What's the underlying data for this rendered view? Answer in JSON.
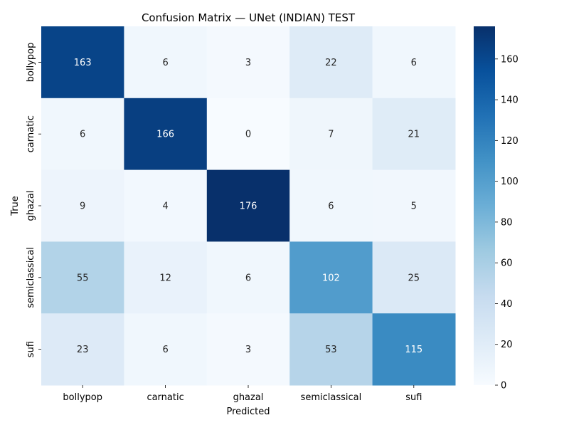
{
  "chart_data": {
    "type": "heatmap",
    "title": "Confusion Matrix — UNet (INDIAN) TEST",
    "xlabel": "Predicted",
    "ylabel": "True",
    "x_categories": [
      "bollypop",
      "carnatic",
      "ghazal",
      "semiclassical",
      "sufi"
    ],
    "y_categories": [
      "bollypop",
      "carnatic",
      "ghazal",
      "semiclassical",
      "sufi"
    ],
    "matrix": [
      [
        163,
        6,
        3,
        22,
        6
      ],
      [
        6,
        166,
        0,
        7,
        21
      ],
      [
        9,
        4,
        176,
        6,
        5
      ],
      [
        55,
        12,
        6,
        102,
        25
      ],
      [
        23,
        6,
        3,
        53,
        115
      ]
    ],
    "color_range": [
      0,
      176
    ],
    "colorbar_ticks": [
      0,
      20,
      40,
      60,
      80,
      100,
      120,
      140,
      160
    ],
    "colormap": "Blues",
    "annotation_threshold": 88
  }
}
